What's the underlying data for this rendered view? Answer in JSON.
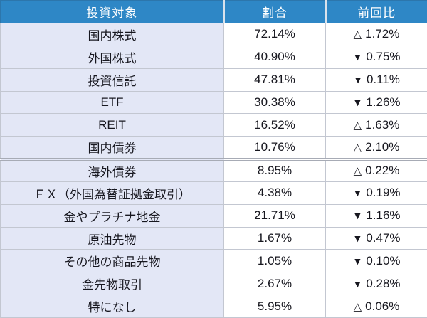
{
  "table": {
    "header": {
      "target": "投資対象",
      "ratio": "割合",
      "change": "前回比"
    },
    "rows": [
      {
        "label": "国内株式",
        "ratio": "72.14%",
        "direction": "up",
        "change": "1.72%"
      },
      {
        "label": "外国株式",
        "ratio": "40.90%",
        "direction": "down",
        "change": "0.75%"
      },
      {
        "label": "投資信託",
        "ratio": "47.81%",
        "direction": "down",
        "change": "0.11%"
      },
      {
        "label": "ETF",
        "ratio": "30.38%",
        "direction": "down",
        "change": "1.26%"
      },
      {
        "label": "REIT",
        "ratio": "16.52%",
        "direction": "up",
        "change": "1.63%"
      },
      {
        "label": "国内債券",
        "ratio": "10.76%",
        "direction": "up",
        "change": "2.10%"
      },
      {
        "label": "海外債券",
        "ratio": "8.95%",
        "direction": "up",
        "change": "0.22%"
      },
      {
        "label": "ＦＸ（外国為替証拠金取引）",
        "ratio": "4.38%",
        "direction": "down",
        "change": "0.19%"
      },
      {
        "label": "金やプラチナ地金",
        "ratio": "21.71%",
        "direction": "down",
        "change": "1.16%"
      },
      {
        "label": "原油先物",
        "ratio": "1.67%",
        "direction": "down",
        "change": "0.47%"
      },
      {
        "label": "その他の商品先物",
        "ratio": "1.05%",
        "direction": "down",
        "change": "0.10%"
      },
      {
        "label": "金先物取引",
        "ratio": "2.67%",
        "direction": "down",
        "change": "0.28%"
      },
      {
        "label": "特になし",
        "ratio": "5.95%",
        "direction": "up",
        "change": "0.06%"
      }
    ],
    "section_break_after_row": 5
  },
  "icons": {
    "up_triangle": "△",
    "down_triangle": "▼"
  },
  "colors": {
    "header_bg": "#2E87C6",
    "header_text": "#FFFFFF",
    "label_column_bg": "#E3E7F6",
    "value_column_bg": "#FFFFFF",
    "grid_line": "#C3C7D1",
    "body_text": "#17171F"
  }
}
